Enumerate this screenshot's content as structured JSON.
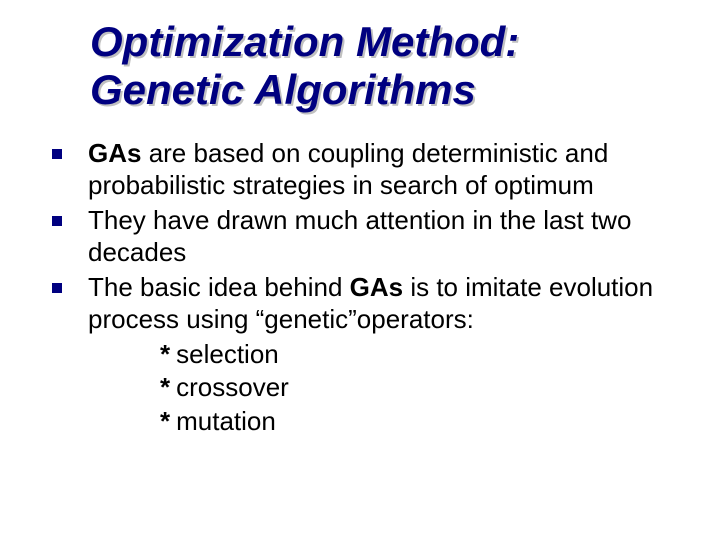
{
  "title_color": "#000080",
  "title_shadow": "#c0c0c0",
  "bullet_color": "#000080",
  "text_color": "#000000",
  "background_color": "#ffffff",
  "title_fontsize": 42,
  "body_fontsize": 26,
  "title": {
    "line1": "Optimization Method:",
    "line2": "Genetic Algorithms"
  },
  "bullets": [
    {
      "prefix_bold": "GAs",
      "rest": " are based on coupling deterministic and probabilistic strategies in search of optimum"
    },
    {
      "prefix_bold": "",
      "rest": "They have drawn much attention in the last two decades"
    },
    {
      "prefix_bold": "",
      "rest_part1": "The basic idea behind ",
      "mid_bold": "GAs",
      "rest_part2": " is to imitate evolution process using “genetic”operators:"
    }
  ],
  "sub_items": [
    {
      "star": "*",
      "text": "selection"
    },
    {
      "star": "*",
      "text": "crossover"
    },
    {
      "star": "*",
      "text": "mutation"
    }
  ]
}
